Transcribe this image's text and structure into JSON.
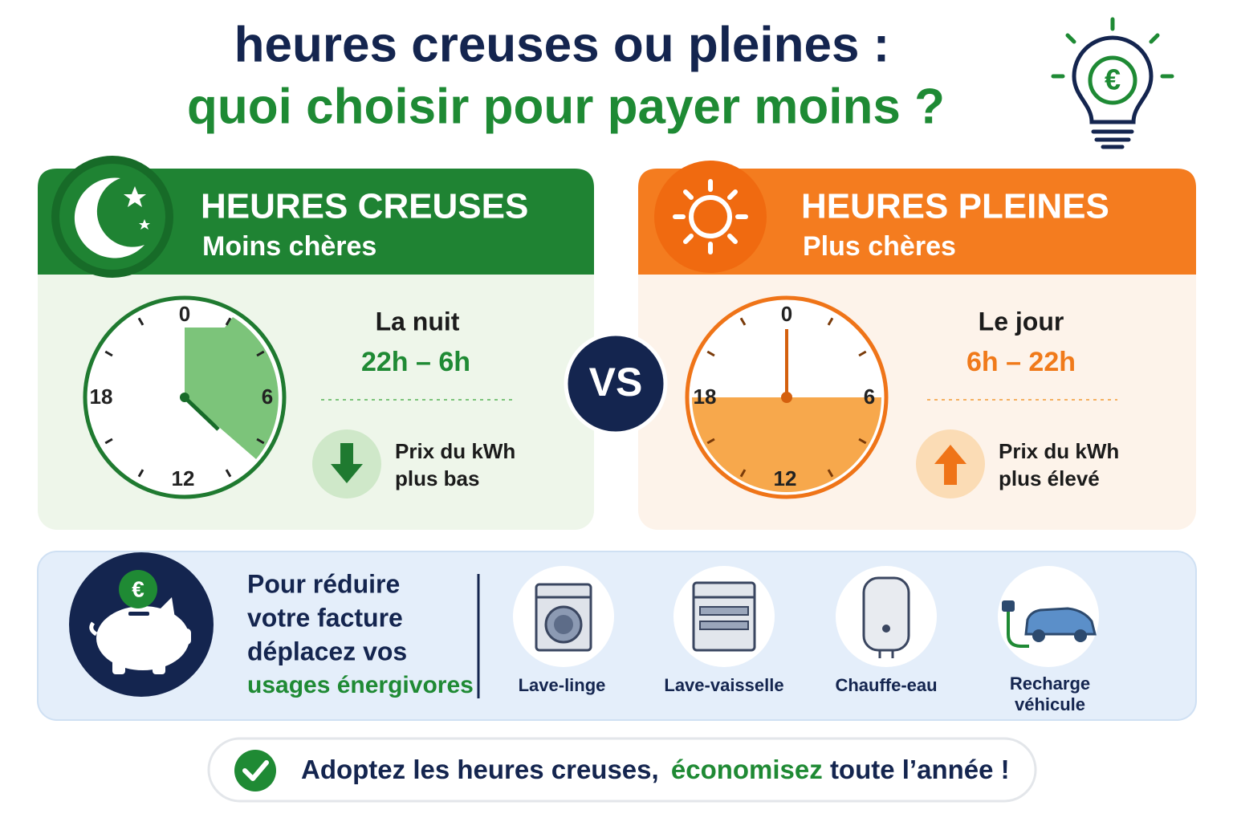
{
  "header": {
    "title_line1": "heures creuses ou pleines :",
    "title_line2": "quoi choisir pour payer moins ?",
    "euro": "€"
  },
  "offpeak": {
    "title": "HEURES CREUSES",
    "subtitle": "Moins chères",
    "clock_labels": [
      "0",
      "6",
      "12",
      "18"
    ],
    "period": "La nuit",
    "hours": "22h – 6h",
    "price_line1": "Prix du kWh",
    "price_line2": "plus bas"
  },
  "peak": {
    "title": "HEURES PLEINES",
    "subtitle": "Plus chères",
    "clock_labels": [
      "0",
      "6",
      "12",
      "18"
    ],
    "period": "Le jour",
    "hours": "6h – 22h",
    "price_line1": "Prix du kWh",
    "price_line2": "plus élevé"
  },
  "vs": "VS",
  "tips": {
    "lines": [
      "Pour réduire",
      "votre facture",
      "déplacez vos",
      "usages énergivores"
    ],
    "euro": "€",
    "appliances": [
      {
        "label": [
          "Lave-linge"
        ]
      },
      {
        "label": [
          "Lave-vaisselle"
        ]
      },
      {
        "label": [
          "Chauffe-eau"
        ]
      },
      {
        "label": [
          "Recharge",
          "véhicule"
        ]
      }
    ]
  },
  "footer": {
    "parts": [
      "Adoptez les heures creuses,",
      "économisez",
      "toute l’année !"
    ]
  }
}
